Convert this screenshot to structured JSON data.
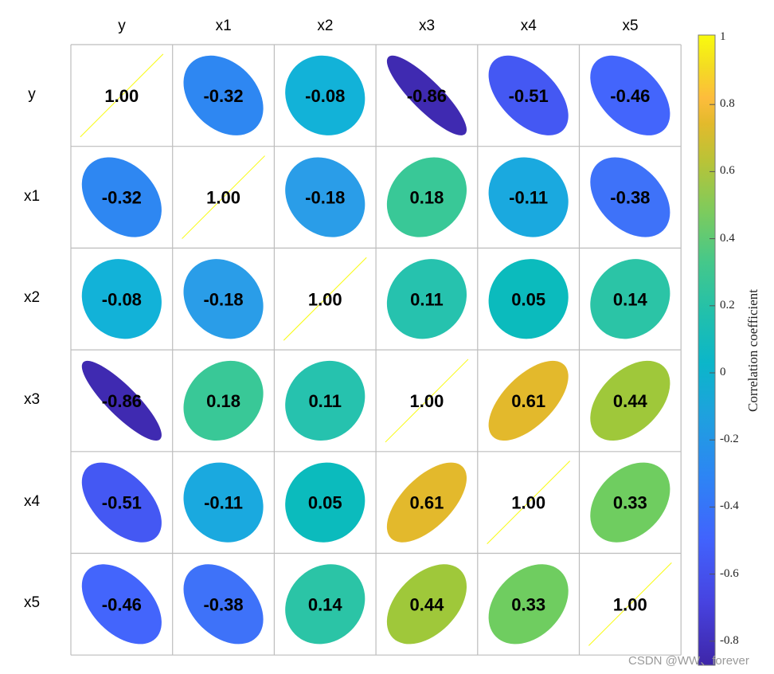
{
  "chart_data": {
    "type": "heatmap",
    "subtype": "correlation-ellipse-matrix",
    "variables": [
      "y",
      "x1",
      "x2",
      "x3",
      "x4",
      "x5"
    ],
    "matrix": [
      [
        1.0,
        -0.32,
        -0.08,
        -0.86,
        -0.51,
        -0.46
      ],
      [
        -0.32,
        1.0,
        -0.18,
        0.18,
        -0.11,
        -0.38
      ],
      [
        -0.08,
        -0.18,
        1.0,
        0.11,
        0.05,
        0.14
      ],
      [
        -0.86,
        0.18,
        0.11,
        1.0,
        0.61,
        0.44
      ],
      [
        -0.51,
        -0.11,
        0.05,
        0.61,
        1.0,
        0.33
      ],
      [
        -0.46,
        -0.38,
        0.14,
        0.44,
        0.33,
        1.0
      ]
    ],
    "labels": [
      [
        "1.00",
        "-0.32",
        "-0.08",
        "-0.86",
        "-0.51",
        "-0.46"
      ],
      [
        "-0.32",
        "1.00",
        "-0.18",
        "0.18",
        "-0.11",
        "-0.38"
      ],
      [
        "-0.08",
        "-0.18",
        "1.00",
        "0.11",
        "0.05",
        "0.14"
      ],
      [
        "-0.86",
        "0.18",
        "0.11",
        "1.00",
        "0.61",
        "0.44"
      ],
      [
        "-0.51",
        "-0.11",
        "0.05",
        "0.61",
        "1.00",
        "0.33"
      ],
      [
        "-0.46",
        "-0.38",
        "0.14",
        "0.44",
        "0.33",
        "1.00"
      ]
    ],
    "colors": [
      [
        "#f9fb0e",
        "#2e87f2",
        "#12b2d8",
        "#3f2ab1",
        "#4458f3",
        "#4365fc"
      ],
      [
        "#2e87f2",
        "#f9fb0e",
        "#2a9de8",
        "#39c897",
        "#1aa9df",
        "#3e72f9"
      ],
      [
        "#12b2d8",
        "#2a9de8",
        "#f9fb0e",
        "#26c2ae",
        "#0bbbbd",
        "#2bc4a6"
      ],
      [
        "#3f2ab1",
        "#39c897",
        "#26c2ae",
        "#f9fb0e",
        "#e3b92c",
        "#9fc83a"
      ],
      [
        "#4458f3",
        "#1aa9df",
        "#0bbbbd",
        "#e3b92c",
        "#f9fb0e",
        "#6fcd60"
      ],
      [
        "#4365fc",
        "#3e72f9",
        "#2bc4a6",
        "#9fc83a",
        "#6fcd60",
        "#f9fb0e"
      ]
    ],
    "colorbar": {
      "label": "Correlation coefficient",
      "ticks": [
        "1",
        "0.8",
        "0.6",
        "0.4",
        "0.2",
        "0",
        "-0.2",
        "-0.4",
        "-0.6",
        "-0.8"
      ],
      "tick_values": [
        1,
        0.8,
        0.6,
        0.4,
        0.2,
        0,
        -0.2,
        -0.4,
        -0.6,
        -0.8
      ],
      "range": [
        -0.86,
        1
      ],
      "colormap": "parula"
    },
    "legend_position": "right",
    "grid": true,
    "title": "",
    "xlabel": "",
    "ylabel": ""
  },
  "watermark": "CSDN @WW、forever"
}
